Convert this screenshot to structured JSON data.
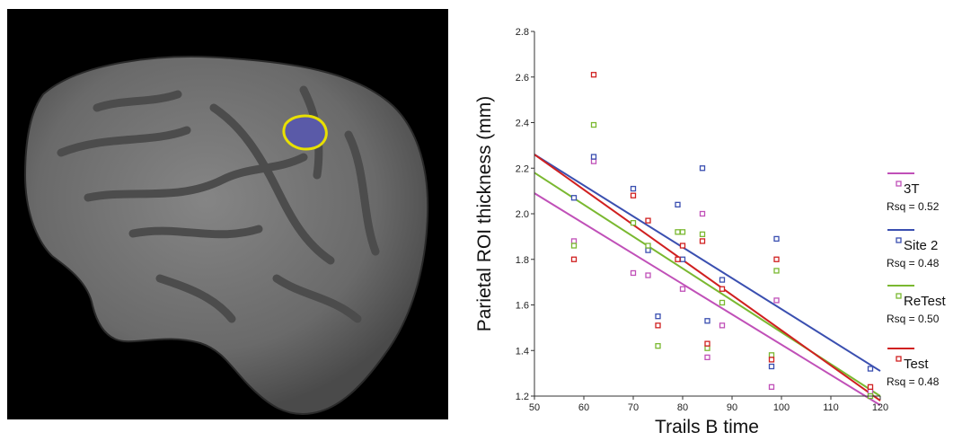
{
  "colors": {
    "brain_panel_bg": "#000000",
    "cortex": "#6e6e6e",
    "roi_fill": "#5a5aa8",
    "roi_outline": "#e8e000"
  },
  "chart_data": {
    "type": "scatter",
    "xlabel": "Trails B time",
    "ylabel": "Parietal ROI thickness (mm)",
    "xlim": [
      50,
      120
    ],
    "ylim": [
      1.2,
      2.8
    ],
    "xticks": [
      "50",
      "60",
      "70",
      "80",
      "90",
      "100",
      "110",
      "120"
    ],
    "yticks": [
      "1.2",
      "1.4",
      "1.6",
      "1.8",
      "2.0",
      "2.2",
      "2.4",
      "2.6",
      "2.8"
    ],
    "grid": false,
    "legend_position": "right",
    "series": [
      {
        "name": "3T",
        "rsq_label": "Rsq = 0.52",
        "color": "#c050b8",
        "fit": [
          [
            50,
            2.09
          ],
          [
            120,
            1.16
          ]
        ],
        "points": [
          [
            58,
            1.88
          ],
          [
            62,
            2.23
          ],
          [
            70,
            1.74
          ],
          [
            73,
            1.73
          ],
          [
            80,
            1.67
          ],
          [
            84,
            2.0
          ],
          [
            85,
            1.37
          ],
          [
            88,
            1.51
          ],
          [
            98,
            1.24
          ],
          [
            99,
            1.62
          ],
          [
            118,
            1.22
          ]
        ]
      },
      {
        "name": "Site 2",
        "rsq_label": "Rsq = 0.48",
        "color": "#3a4fb0",
        "fit": [
          [
            50,
            2.26
          ],
          [
            120,
            1.31
          ]
        ],
        "points": [
          [
            58,
            2.07
          ],
          [
            62,
            2.25
          ],
          [
            70,
            2.11
          ],
          [
            73,
            1.84
          ],
          [
            75,
            1.55
          ],
          [
            79,
            2.04
          ],
          [
            80,
            1.8
          ],
          [
            84,
            2.2
          ],
          [
            85,
            1.53
          ],
          [
            88,
            1.71
          ],
          [
            98,
            1.33
          ],
          [
            99,
            1.89
          ],
          [
            118,
            1.32
          ]
        ]
      },
      {
        "name": "ReTest",
        "rsq_label": "Rsq = 0.50",
        "color": "#7ab830",
        "fit": [
          [
            50,
            2.18
          ],
          [
            120,
            1.2
          ]
        ],
        "points": [
          [
            58,
            1.86
          ],
          [
            62,
            2.39
          ],
          [
            70,
            1.96
          ],
          [
            73,
            1.86
          ],
          [
            75,
            1.42
          ],
          [
            79,
            1.92
          ],
          [
            80,
            1.92
          ],
          [
            84,
            1.91
          ],
          [
            85,
            1.41
          ],
          [
            88,
            1.61
          ],
          [
            98,
            1.38
          ],
          [
            99,
            1.75
          ],
          [
            118,
            1.2
          ]
        ]
      },
      {
        "name": "Test",
        "rsq_label": "Rsq = 0.48",
        "color": "#d02020",
        "fit": [
          [
            50,
            2.26
          ],
          [
            120,
            1.18
          ]
        ],
        "points": [
          [
            58,
            1.8
          ],
          [
            62,
            2.61
          ],
          [
            70,
            2.08
          ],
          [
            73,
            1.97
          ],
          [
            75,
            1.51
          ],
          [
            79,
            1.8
          ],
          [
            80,
            1.86
          ],
          [
            84,
            1.88
          ],
          [
            85,
            1.43
          ],
          [
            88,
            1.67
          ],
          [
            98,
            1.36
          ],
          [
            99,
            1.8
          ],
          [
            118,
            1.24
          ]
        ]
      }
    ]
  }
}
